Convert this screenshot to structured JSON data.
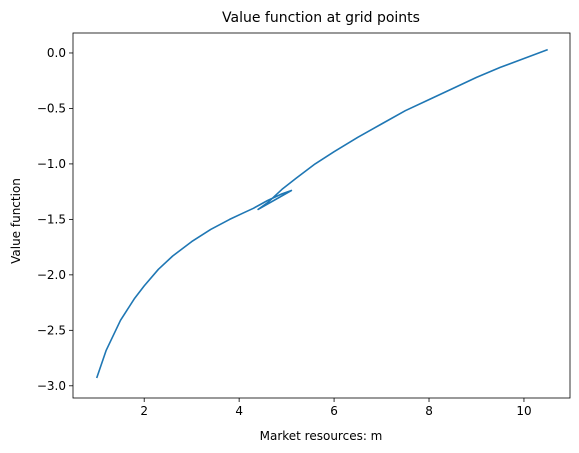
{
  "chart_data": {
    "type": "line",
    "title": "Value function at grid points",
    "xlabel": "Market resources: m",
    "ylabel": "Value function",
    "xlim": [
      0.5,
      10.97
    ],
    "ylim": [
      -3.11,
      0.18
    ],
    "xticks": [
      2,
      4,
      6,
      8,
      10
    ],
    "xtick_labels": [
      "2",
      "4",
      "6",
      "8",
      "10"
    ],
    "yticks": [
      -3.0,
      -2.5,
      -2.0,
      -1.5,
      -1.0,
      -0.5,
      0.0
    ],
    "ytick_labels": [
      "−3.0",
      "−2.5",
      "−2.0",
      "−1.5",
      "−1.0",
      "−0.5",
      "0.0"
    ],
    "grid": false,
    "series": [
      {
        "color": "#1f77b4",
        "x": [
          1.0,
          1.2,
          1.5,
          1.8,
          2.0,
          2.3,
          2.6,
          3.0,
          3.4,
          3.8,
          4.1,
          4.3,
          4.6,
          4.9,
          5.1,
          4.4,
          4.6,
          4.9,
          5.2,
          5.6,
          6.0,
          6.5,
          7.0,
          7.5,
          8.0,
          8.5,
          9.0,
          9.5,
          10.0,
          10.5
        ],
        "y": [
          -2.93,
          -2.68,
          -2.41,
          -2.21,
          -2.1,
          -1.95,
          -1.83,
          -1.7,
          -1.59,
          -1.5,
          -1.44,
          -1.4,
          -1.33,
          -1.27,
          -1.24,
          -1.41,
          -1.35,
          -1.23,
          -1.13,
          -1.0,
          -0.89,
          -0.76,
          -0.64,
          -0.52,
          -0.42,
          -0.32,
          -0.22,
          -0.13,
          -0.05,
          0.03
        ]
      }
    ]
  }
}
